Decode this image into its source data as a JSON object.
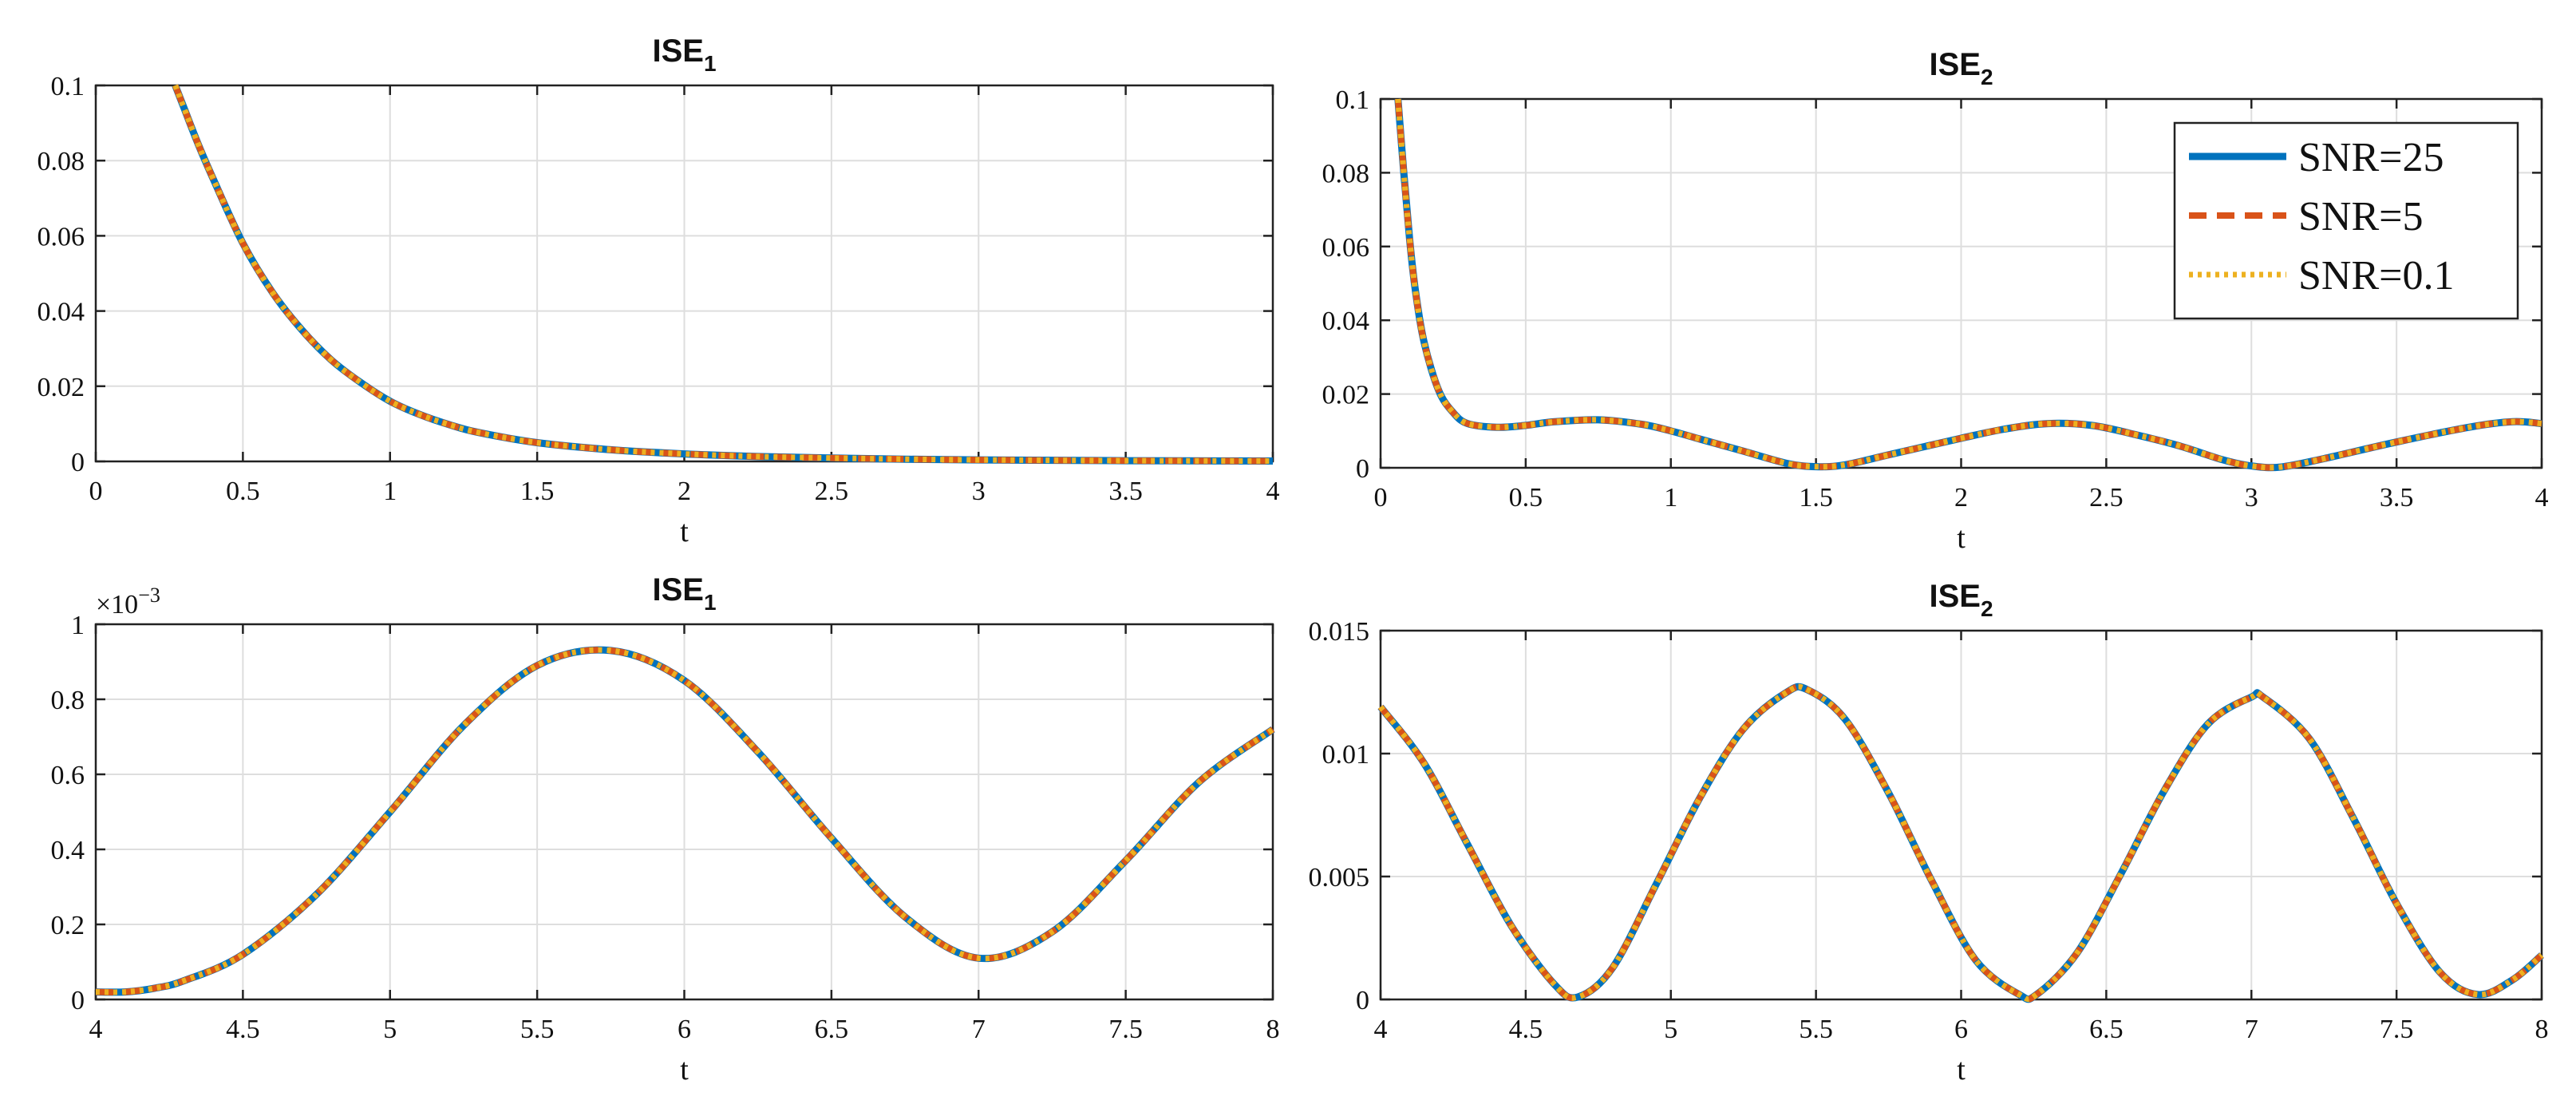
{
  "colors": {
    "snr25": "#0072BD",
    "snr5": "#D95319",
    "snr01": "#EDB120",
    "grid": "#dedede",
    "axis": "#222222"
  },
  "legend": {
    "entries": [
      "SNR=25",
      "SNR=5",
      "SNR=0.1"
    ],
    "placement": "top-right",
    "panel": 1
  },
  "chart_data": [
    {
      "type": "line",
      "title": "ISE",
      "title_sub": "1",
      "xlabel": "t",
      "ylabel": "",
      "xlim": [
        0,
        4
      ],
      "ylim": [
        0,
        0.1
      ],
      "xticks": [
        0,
        0.5,
        1,
        1.5,
        2,
        2.5,
        3,
        3.5,
        4
      ],
      "xtick_labels": [
        "0",
        "0.5",
        "1",
        "1.5",
        "2",
        "2.5",
        "3",
        "3.5",
        "4"
      ],
      "yticks": [
        0,
        0.02,
        0.04,
        0.06,
        0.08,
        0.1
      ],
      "ytick_labels": [
        "0",
        "0.02",
        "0.04",
        "0.06",
        "0.08",
        "0.1"
      ],
      "grid": true,
      "x": [
        0.27,
        0.3,
        0.35,
        0.4,
        0.5,
        0.6,
        0.7,
        0.8,
        0.9,
        1.0,
        1.1,
        1.2,
        1.3,
        1.5,
        1.75,
        2.0,
        2.25,
        2.5,
        2.75,
        3.0,
        3.5,
        4.0
      ],
      "series": [
        {
          "name": "SNR=25",
          "values": [
            0.1,
            0.094,
            0.084,
            0.075,
            0.058,
            0.045,
            0.035,
            0.027,
            0.021,
            0.016,
            0.0125,
            0.0098,
            0.0077,
            0.005,
            0.0031,
            0.002,
            0.0013,
            0.0009,
            0.0006,
            0.0004,
            0.0002,
            0.0001
          ]
        },
        {
          "name": "SNR=5",
          "values": [
            0.1,
            0.094,
            0.084,
            0.075,
            0.058,
            0.045,
            0.035,
            0.027,
            0.021,
            0.016,
            0.0125,
            0.0098,
            0.0077,
            0.005,
            0.0031,
            0.002,
            0.0013,
            0.0009,
            0.0006,
            0.0004,
            0.0002,
            0.0001
          ]
        },
        {
          "name": "SNR=0.1",
          "values": [
            0.1,
            0.094,
            0.084,
            0.075,
            0.058,
            0.045,
            0.035,
            0.027,
            0.021,
            0.016,
            0.0125,
            0.0098,
            0.0077,
            0.005,
            0.0031,
            0.002,
            0.0013,
            0.0009,
            0.0006,
            0.0004,
            0.0002,
            0.0001
          ]
        }
      ]
    },
    {
      "type": "line",
      "title": "ISE",
      "title_sub": "2",
      "xlabel": "t",
      "ylabel": "",
      "xlim": [
        0,
        4
      ],
      "ylim": [
        0,
        0.1
      ],
      "xticks": [
        0,
        0.5,
        1,
        1.5,
        2,
        2.5,
        3,
        3.5,
        4
      ],
      "xtick_labels": [
        "0",
        "0.5",
        "1",
        "1.5",
        "2",
        "2.5",
        "3",
        "3.5",
        "4"
      ],
      "yticks": [
        0,
        0.02,
        0.04,
        0.06,
        0.08,
        0.1
      ],
      "ytick_labels": [
        "0",
        "0.02",
        "0.04",
        "0.06",
        "0.08",
        "0.1"
      ],
      "grid": true,
      "x": [
        0.06,
        0.08,
        0.1,
        0.12,
        0.15,
        0.2,
        0.25,
        0.3,
        0.4,
        0.5,
        0.6,
        0.75,
        0.9,
        1.0,
        1.1,
        1.25,
        1.4,
        1.5,
        1.6,
        1.75,
        2.0,
        2.15,
        2.3,
        2.45,
        2.6,
        2.75,
        2.9,
        3.0,
        3.1,
        3.25,
        3.5,
        3.75,
        3.9,
        4.0
      ],
      "series": [
        {
          "name": "SNR=25",
          "values": [
            0.1,
            0.08,
            0.062,
            0.048,
            0.034,
            0.021,
            0.015,
            0.012,
            0.011,
            0.0115,
            0.0125,
            0.013,
            0.0118,
            0.01,
            0.0078,
            0.0045,
            0.0012,
            0.0003,
            0.0008,
            0.0035,
            0.008,
            0.0105,
            0.012,
            0.0115,
            0.009,
            0.006,
            0.0022,
            0.0005,
            0.0002,
            0.0025,
            0.007,
            0.011,
            0.0125,
            0.012
          ]
        },
        {
          "name": "SNR=5",
          "values": [
            0.1,
            0.08,
            0.062,
            0.048,
            0.034,
            0.021,
            0.015,
            0.012,
            0.011,
            0.0115,
            0.0125,
            0.013,
            0.0118,
            0.01,
            0.0078,
            0.0045,
            0.0012,
            0.0003,
            0.0008,
            0.0035,
            0.008,
            0.0105,
            0.012,
            0.0115,
            0.009,
            0.006,
            0.0022,
            0.0005,
            0.0002,
            0.0025,
            0.007,
            0.011,
            0.0125,
            0.012
          ]
        },
        {
          "name": "SNR=0.1",
          "values": [
            0.1,
            0.08,
            0.062,
            0.048,
            0.034,
            0.021,
            0.015,
            0.012,
            0.011,
            0.0115,
            0.0125,
            0.013,
            0.0118,
            0.01,
            0.0078,
            0.0045,
            0.0012,
            0.0003,
            0.0008,
            0.0035,
            0.008,
            0.0105,
            0.012,
            0.0115,
            0.009,
            0.006,
            0.0022,
            0.0005,
            0.0002,
            0.0025,
            0.007,
            0.011,
            0.0125,
            0.012
          ]
        }
      ]
    },
    {
      "type": "line",
      "title": "ISE",
      "title_sub": "1",
      "xlabel": "t",
      "ylabel": "",
      "xlim": [
        4,
        8
      ],
      "ylim": [
        0,
        0.001
      ],
      "y_exponent": "×10",
      "y_exponent_power": "−3",
      "xticks": [
        4,
        4.5,
        5,
        5.5,
        6,
        6.5,
        7,
        7.5,
        8
      ],
      "xtick_labels": [
        "4",
        "4.5",
        "5",
        "5.5",
        "6",
        "6.5",
        "7",
        "7.5",
        "8"
      ],
      "yticks": [
        0,
        0.0002,
        0.0004,
        0.0006,
        0.0008,
        0.001
      ],
      "ytick_labels": [
        "0",
        "0.2",
        "0.4",
        "0.6",
        "0.8",
        "1"
      ],
      "grid": true,
      "x": [
        4.0,
        4.1,
        4.2,
        4.3,
        4.5,
        4.75,
        5.0,
        5.25,
        5.5,
        5.75,
        6.0,
        6.25,
        6.5,
        6.75,
        7.0,
        7.25,
        7.5,
        7.75,
        8.0
      ],
      "series": [
        {
          "name": "SNR=25",
          "values": [
            2e-05,
            2e-05,
            3e-05,
            5e-05,
            0.00012,
            0.00028,
            0.0005,
            0.00073,
            0.00089,
            0.00093,
            0.00085,
            0.00066,
            0.00043,
            0.00022,
            0.00011,
            0.00018,
            0.00037,
            0.00058,
            0.00072
          ]
        },
        {
          "name": "SNR=5",
          "values": [
            2e-05,
            2e-05,
            3e-05,
            5e-05,
            0.00012,
            0.00028,
            0.0005,
            0.00073,
            0.00089,
            0.00093,
            0.00085,
            0.00066,
            0.00043,
            0.00022,
            0.00011,
            0.00018,
            0.00037,
            0.00058,
            0.00072
          ]
        },
        {
          "name": "SNR=0.1",
          "values": [
            2e-05,
            2e-05,
            3e-05,
            5e-05,
            0.00012,
            0.00028,
            0.0005,
            0.00073,
            0.00089,
            0.00093,
            0.00085,
            0.00066,
            0.00043,
            0.00022,
            0.00011,
            0.00018,
            0.00037,
            0.00058,
            0.00072
          ]
        }
      ]
    },
    {
      "type": "line",
      "title": "ISE",
      "title_sub": "2",
      "xlabel": "t",
      "ylabel": "",
      "xlim": [
        4,
        8
      ],
      "ylim": [
        0,
        0.015
      ],
      "xticks": [
        4,
        4.5,
        5,
        5.5,
        6,
        6.5,
        7,
        7.5,
        8
      ],
      "xtick_labels": [
        "4",
        "4.5",
        "5",
        "5.5",
        "6",
        "6.5",
        "7",
        "7.5",
        "8"
      ],
      "yticks": [
        0,
        0.005,
        0.01,
        0.015
      ],
      "ytick_labels": [
        "0",
        "0.005",
        "0.01",
        "0.015"
      ],
      "grid": true,
      "x": [
        4.0,
        4.15,
        4.3,
        4.45,
        4.6,
        4.68,
        4.8,
        4.95,
        5.1,
        5.25,
        5.4,
        5.47,
        5.6,
        5.75,
        5.9,
        6.05,
        6.2,
        6.26,
        6.4,
        6.55,
        6.7,
        6.85,
        7.0,
        7.04,
        7.2,
        7.35,
        7.5,
        7.65,
        7.78,
        7.9,
        8.0
      ],
      "series": [
        {
          "name": "SNR=25",
          "values": [
            0.0119,
            0.0096,
            0.0063,
            0.003,
            0.0006,
            0.0001,
            0.0013,
            0.0047,
            0.0082,
            0.011,
            0.0125,
            0.0126,
            0.0114,
            0.0084,
            0.0048,
            0.0016,
            0.0002,
            0.0002,
            0.0019,
            0.0051,
            0.0085,
            0.0112,
            0.0123,
            0.0123,
            0.0106,
            0.0074,
            0.0039,
            0.0011,
            0.0002,
            0.0008,
            0.0018
          ]
        },
        {
          "name": "SNR=5",
          "values": [
            0.0119,
            0.0096,
            0.0063,
            0.003,
            0.0006,
            0.0001,
            0.0013,
            0.0047,
            0.0082,
            0.011,
            0.0125,
            0.0126,
            0.0114,
            0.0084,
            0.0048,
            0.0016,
            0.0002,
            0.0002,
            0.0019,
            0.0051,
            0.0085,
            0.0112,
            0.0123,
            0.0123,
            0.0106,
            0.0074,
            0.0039,
            0.0011,
            0.0002,
            0.0008,
            0.0018
          ]
        },
        {
          "name": "SNR=0.1",
          "values": [
            0.0119,
            0.0096,
            0.0063,
            0.003,
            0.0006,
            0.0001,
            0.0013,
            0.0047,
            0.0082,
            0.011,
            0.0125,
            0.0126,
            0.0114,
            0.0084,
            0.0048,
            0.0016,
            0.0002,
            0.0002,
            0.0019,
            0.0051,
            0.0085,
            0.0112,
            0.0123,
            0.0123,
            0.0106,
            0.0074,
            0.0039,
            0.0011,
            0.0002,
            0.0008,
            0.0018
          ]
        }
      ]
    }
  ]
}
